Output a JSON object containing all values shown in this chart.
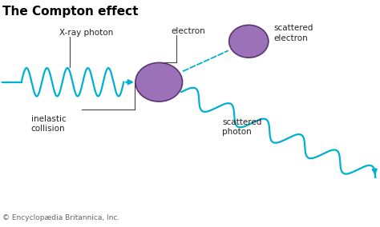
{
  "title": "The Compton effect",
  "title_fontsize": 11,
  "title_fontweight": "bold",
  "background_color": "#ffffff",
  "electron_color": "#9b72b8",
  "electron_edge_color": "#5a3570",
  "wave_color": "#00b0d0",
  "text_color": "#222222",
  "footer_text": "© Encyclopædia Britannica, Inc.",
  "footer_fontsize": 6.5,
  "label_fontsize": 7.5,
  "labels": {
    "xray_photon": "X-ray photon",
    "electron": "electron",
    "inelastic_collision": "inelastic\ncollision",
    "scattered_electron": "scattered\nelectron",
    "scattered_photon": "scattered\nphoton"
  }
}
